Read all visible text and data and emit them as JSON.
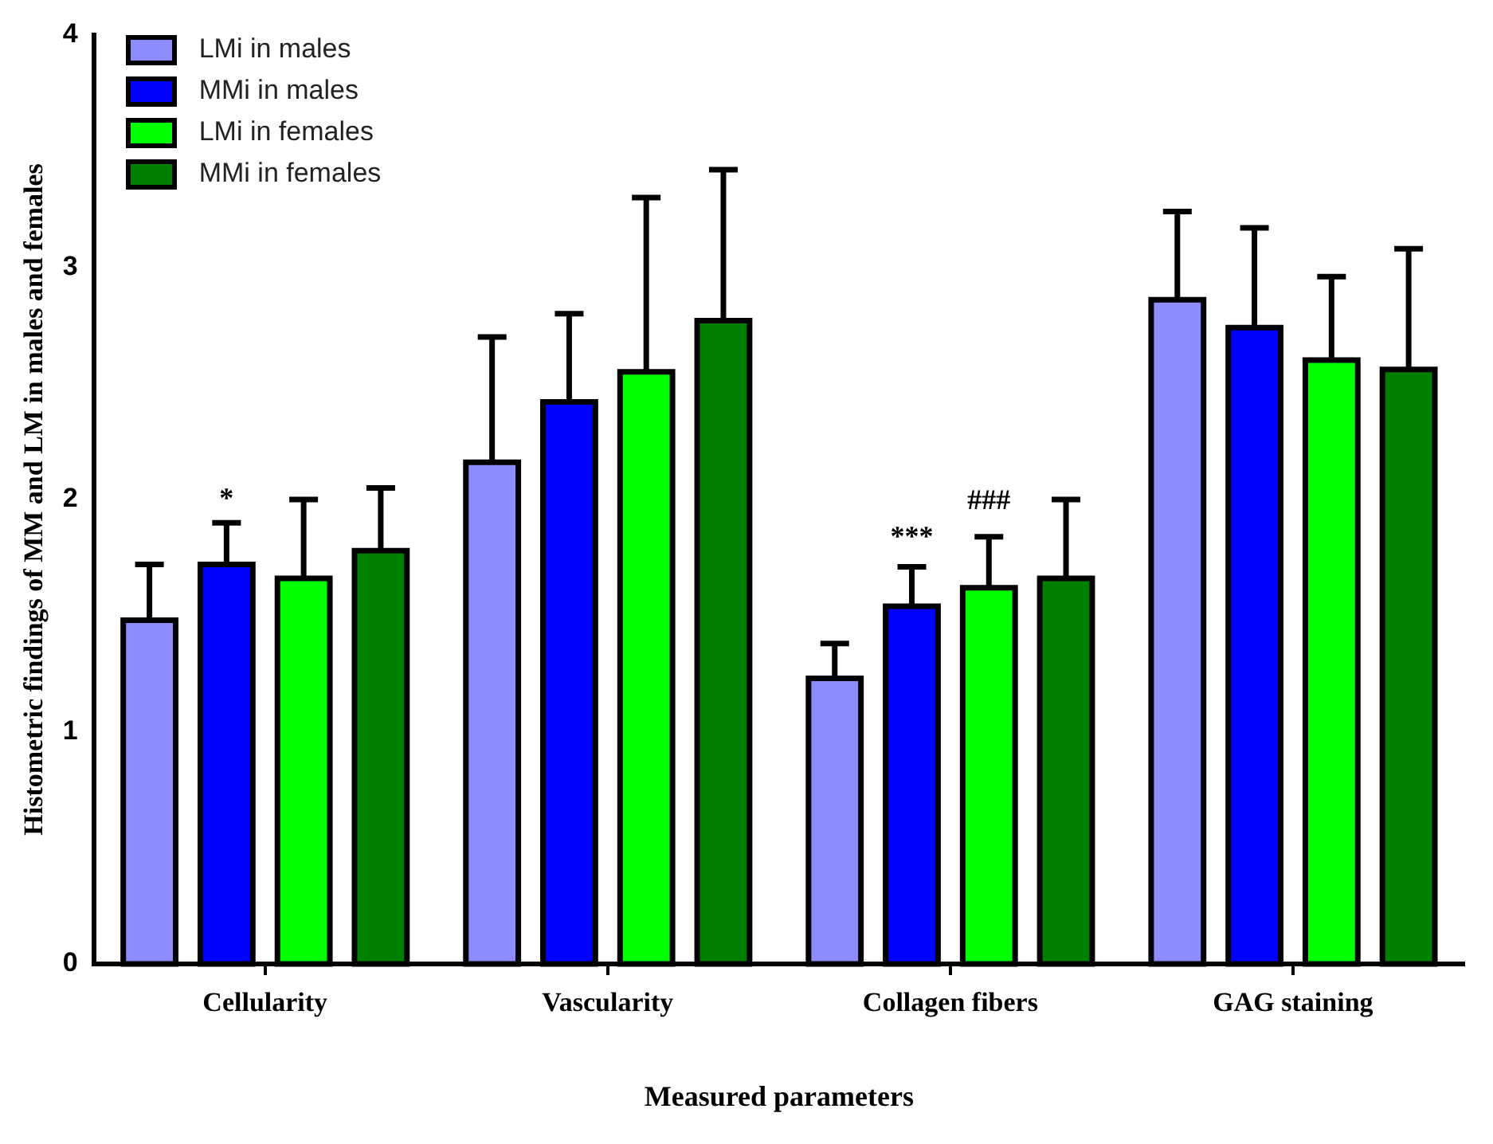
{
  "chart_data": {
    "type": "bar",
    "xlabel": "Measured parameters",
    "ylabel": "Histometric findings of MM and LM in males and females",
    "categories": [
      "Cellularity",
      "Vascularity",
      "Collagen fibers",
      "GAG staining"
    ],
    "series": [
      {
        "name": "LMi in males",
        "color": "#8c8cff",
        "values": [
          1.48,
          2.16,
          1.23,
          2.86
        ],
        "errors": [
          [
            1.48,
            1.72
          ],
          [
            2.16,
            2.7
          ],
          [
            1.23,
            1.38
          ],
          [
            2.86,
            3.24
          ]
        ]
      },
      {
        "name": "MMi in males",
        "color": "#0000ff",
        "values": [
          1.72,
          2.42,
          1.54,
          2.74
        ],
        "errors": [
          [
            1.72,
            1.9
          ],
          [
            2.42,
            2.8
          ],
          [
            1.54,
            1.71
          ],
          [
            2.74,
            3.17
          ]
        ]
      },
      {
        "name": "LMi in females",
        "color": "#00ff00",
        "values": [
          1.66,
          2.55,
          1.62,
          2.6
        ],
        "errors": [
          [
            1.66,
            2.0
          ],
          [
            2.55,
            3.3
          ],
          [
            1.62,
            1.84
          ],
          [
            2.6,
            2.96
          ]
        ]
      },
      {
        "name": "MMi in females",
        "color": "#008000",
        "values": [
          1.78,
          2.77,
          1.66,
          2.56
        ],
        "errors": [
          [
            1.78,
            2.05
          ],
          [
            2.77,
            3.42
          ],
          [
            1.66,
            2.0
          ],
          [
            2.56,
            3.08
          ]
        ]
      }
    ],
    "annotations": [
      "*",
      "***",
      "###"
    ],
    "ylim": [
      0,
      4
    ],
    "yticks": [
      0,
      1,
      2,
      3,
      4
    ],
    "grid": false,
    "legend": "top left"
  }
}
